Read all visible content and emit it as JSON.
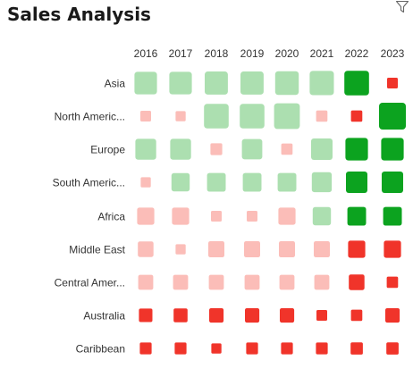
{
  "header": {
    "title": "Sales Analysis",
    "filter_icon": "filter-icon"
  },
  "colors": {
    "positive_light": "#acdfb0",
    "positive_strong": "#0ca31f",
    "negative_light": "#fbbdb8",
    "negative_strong": "#f0342a"
  },
  "chart_data": {
    "type": "heatmap",
    "title": "Sales Analysis",
    "x_categories": [
      "2016",
      "2017",
      "2018",
      "2019",
      "2020",
      "2021",
      "2022",
      "2023"
    ],
    "y_categories": [
      "Asia",
      "North Americ...",
      "Europe",
      "South Americ...",
      "Africa",
      "Middle East",
      "Central Amer...",
      "Australia",
      "Caribbean"
    ],
    "encoding": "square size = magnitude (0-1); color = category (light-green, dark-green, light-red, red)",
    "cells": [
      [
        {
          "size": 0.8,
          "color": "light-green"
        },
        {
          "size": 0.8,
          "color": "light-green"
        },
        {
          "size": 0.83,
          "color": "light-green"
        },
        {
          "size": 0.83,
          "color": "light-green"
        },
        {
          "size": 0.85,
          "color": "light-green"
        },
        {
          "size": 0.88,
          "color": "light-green"
        },
        {
          "size": 0.9,
          "color": "dark-green"
        },
        {
          "size": 0.25,
          "color": "red"
        }
      ],
      [
        {
          "size": 0.25,
          "color": "light-red"
        },
        {
          "size": 0.22,
          "color": "light-red"
        },
        {
          "size": 0.9,
          "color": "light-green"
        },
        {
          "size": 0.9,
          "color": "light-green"
        },
        {
          "size": 0.95,
          "color": "light-green"
        },
        {
          "size": 0.28,
          "color": "light-red"
        },
        {
          "size": 0.28,
          "color": "red"
        },
        {
          "size": 1.0,
          "color": "dark-green"
        }
      ],
      [
        {
          "size": 0.72,
          "color": "light-green"
        },
        {
          "size": 0.72,
          "color": "light-green"
        },
        {
          "size": 0.3,
          "color": "light-red"
        },
        {
          "size": 0.7,
          "color": "light-green"
        },
        {
          "size": 0.28,
          "color": "light-red"
        },
        {
          "size": 0.75,
          "color": "light-green"
        },
        {
          "size": 0.8,
          "color": "dark-green"
        },
        {
          "size": 0.8,
          "color": "dark-green"
        }
      ],
      [
        {
          "size": 0.22,
          "color": "light-red"
        },
        {
          "size": 0.6,
          "color": "light-green"
        },
        {
          "size": 0.62,
          "color": "light-green"
        },
        {
          "size": 0.62,
          "color": "light-green"
        },
        {
          "size": 0.62,
          "color": "light-green"
        },
        {
          "size": 0.68,
          "color": "light-green"
        },
        {
          "size": 0.75,
          "color": "dark-green"
        },
        {
          "size": 0.75,
          "color": "dark-green"
        }
      ],
      [
        {
          "size": 0.55,
          "color": "light-red"
        },
        {
          "size": 0.55,
          "color": "light-red"
        },
        {
          "size": 0.25,
          "color": "light-red"
        },
        {
          "size": 0.25,
          "color": "light-red"
        },
        {
          "size": 0.55,
          "color": "light-red"
        },
        {
          "size": 0.6,
          "color": "light-green"
        },
        {
          "size": 0.62,
          "color": "dark-green"
        },
        {
          "size": 0.62,
          "color": "dark-green"
        }
      ],
      [
        {
          "size": 0.48,
          "color": "light-red"
        },
        {
          "size": 0.22,
          "color": "light-red"
        },
        {
          "size": 0.5,
          "color": "light-red"
        },
        {
          "size": 0.5,
          "color": "light-red"
        },
        {
          "size": 0.5,
          "color": "light-red"
        },
        {
          "size": 0.5,
          "color": "light-red"
        },
        {
          "size": 0.55,
          "color": "red"
        },
        {
          "size": 0.55,
          "color": "red"
        }
      ],
      [
        {
          "size": 0.45,
          "color": "light-red"
        },
        {
          "size": 0.45,
          "color": "light-red"
        },
        {
          "size": 0.45,
          "color": "light-red"
        },
        {
          "size": 0.45,
          "color": "light-red"
        },
        {
          "size": 0.45,
          "color": "light-red"
        },
        {
          "size": 0.45,
          "color": "light-red"
        },
        {
          "size": 0.48,
          "color": "red"
        },
        {
          "size": 0.28,
          "color": "red"
        }
      ],
      [
        {
          "size": 0.38,
          "color": "red"
        },
        {
          "size": 0.4,
          "color": "red"
        },
        {
          "size": 0.42,
          "color": "red"
        },
        {
          "size": 0.42,
          "color": "red"
        },
        {
          "size": 0.42,
          "color": "red"
        },
        {
          "size": 0.25,
          "color": "red"
        },
        {
          "size": 0.28,
          "color": "red"
        },
        {
          "size": 0.42,
          "color": "red"
        }
      ],
      [
        {
          "size": 0.3,
          "color": "red"
        },
        {
          "size": 0.3,
          "color": "red"
        },
        {
          "size": 0.22,
          "color": "red"
        },
        {
          "size": 0.3,
          "color": "red"
        },
        {
          "size": 0.3,
          "color": "red"
        },
        {
          "size": 0.3,
          "color": "red"
        },
        {
          "size": 0.32,
          "color": "red"
        },
        {
          "size": 0.32,
          "color": "red"
        }
      ]
    ]
  }
}
